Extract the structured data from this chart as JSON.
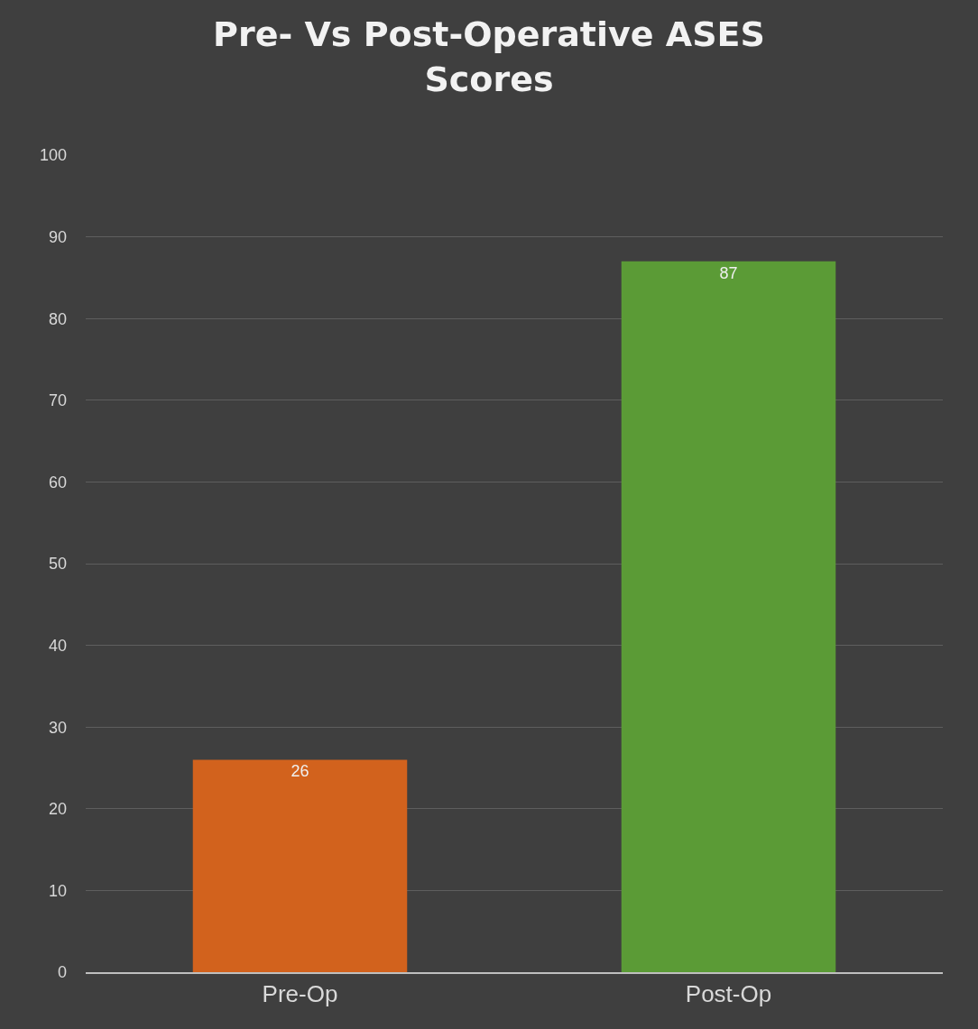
{
  "chart_data": {
    "type": "bar",
    "title": "Pre- Vs Post-Operative ASES Scores",
    "categories": [
      "Pre-Op",
      "Post-Op"
    ],
    "values": [
      26,
      87
    ],
    "colors": [
      "#d2621d",
      "#5b9b36"
    ],
    "data_labels": true,
    "ylim": [
      0,
      100
    ],
    "yticks": [
      0,
      10,
      20,
      30,
      40,
      50,
      60,
      70,
      80,
      90,
      100
    ],
    "grid": "y"
  }
}
